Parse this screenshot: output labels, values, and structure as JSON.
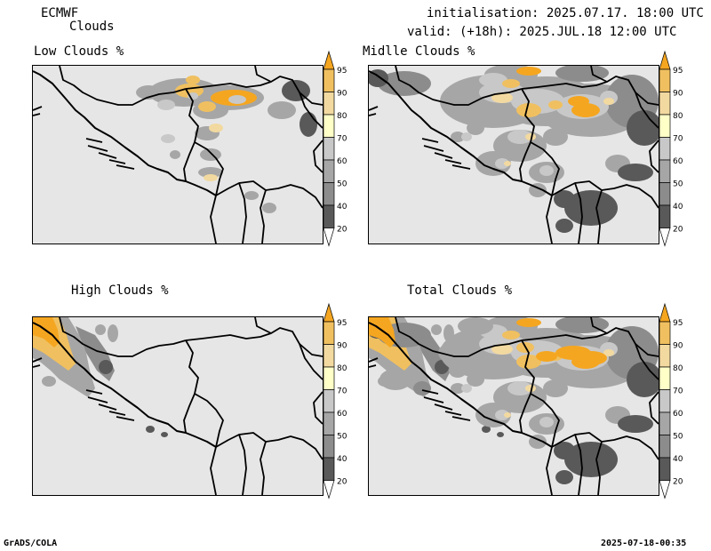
{
  "header": {
    "model": "ECMWF",
    "product": "Clouds",
    "init_line": "initialisation: 2025.07.17. 18:00 UTC",
    "valid_line": "valid: (+18h): 2025.JUL.18 12:00 UTC"
  },
  "panels": [
    {
      "id": "low",
      "title": "Low Clouds %"
    },
    {
      "id": "middle",
      "title": "Midlle Clouds %"
    },
    {
      "id": "high",
      "title": "High Clouds %"
    },
    {
      "id": "total",
      "title": "Total Clouds %"
    }
  ],
  "colorbar": {
    "levels": [
      "20",
      "40",
      "50",
      "60",
      "70",
      "80",
      "90",
      "95"
    ],
    "colors": [
      "#ffffff",
      "#595959",
      "#8c8c8c",
      "#a6a6a6",
      "#c8c8c8",
      "#ffffc8",
      "#f2d9a0",
      "#f0c060",
      "#f5a620"
    ]
  },
  "footer": {
    "left": "GrADS/COLA",
    "right": "2025-07-18-00:35"
  }
}
